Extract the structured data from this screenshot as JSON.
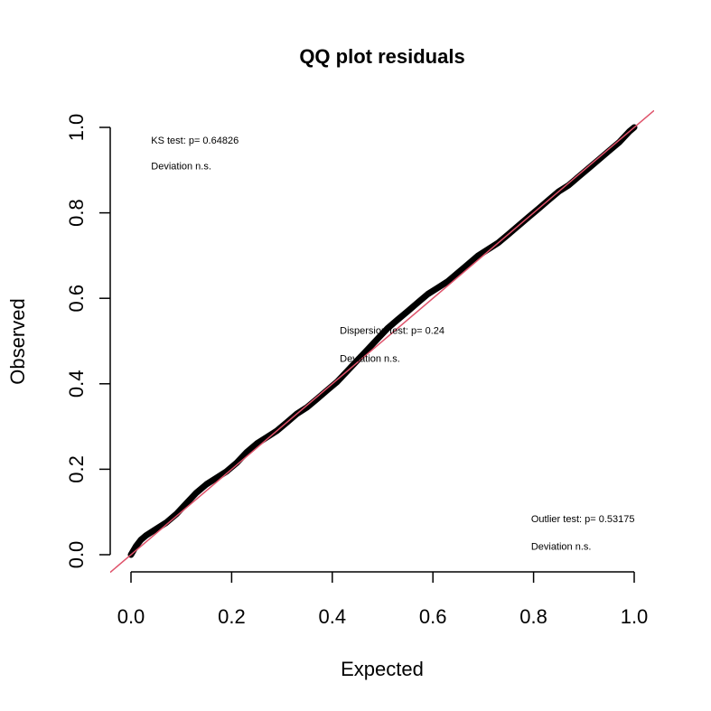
{
  "chart_data": {
    "type": "scatter",
    "title": "QQ plot residuals",
    "xlabel": "Expected",
    "ylabel": "Observed",
    "xlim": [
      0,
      1
    ],
    "ylim": [
      0,
      1
    ],
    "x_ticks": [
      "0.0",
      "0.2",
      "0.4",
      "0.6",
      "0.8",
      "1.0"
    ],
    "y_ticks": [
      "0.0",
      "0.2",
      "0.4",
      "0.6",
      "0.8",
      "1.0"
    ],
    "grid": false,
    "reference_line": {
      "slope": 1,
      "intercept": 0,
      "color": "#DF536B"
    },
    "point_color": "#000000",
    "series": [
      {
        "x": [
          0.0,
          0.01,
          0.02,
          0.03,
          0.05,
          0.07,
          0.09,
          0.11,
          0.13,
          0.15,
          0.17,
          0.19,
          0.21,
          0.23,
          0.25,
          0.27,
          0.29,
          0.31,
          0.33,
          0.35,
          0.37,
          0.39,
          0.41,
          0.43,
          0.45,
          0.47,
          0.49,
          0.51,
          0.53,
          0.55,
          0.57,
          0.59,
          0.61,
          0.63,
          0.65,
          0.67,
          0.69,
          0.71,
          0.73,
          0.75,
          0.77,
          0.79,
          0.81,
          0.83,
          0.85,
          0.87,
          0.89,
          0.91,
          0.93,
          0.95,
          0.97,
          0.99,
          1.0
        ],
        "y": [
          0.0,
          0.02,
          0.035,
          0.045,
          0.06,
          0.075,
          0.095,
          0.12,
          0.145,
          0.165,
          0.18,
          0.195,
          0.215,
          0.24,
          0.26,
          0.275,
          0.29,
          0.31,
          0.33,
          0.345,
          0.365,
          0.385,
          0.405,
          0.43,
          0.455,
          0.48,
          0.505,
          0.53,
          0.55,
          0.57,
          0.59,
          0.61,
          0.625,
          0.64,
          0.66,
          0.68,
          0.7,
          0.715,
          0.73,
          0.75,
          0.77,
          0.79,
          0.81,
          0.83,
          0.85,
          0.865,
          0.885,
          0.905,
          0.925,
          0.945,
          0.965,
          0.99,
          1.0
        ]
      }
    ],
    "annotations": [
      {
        "group": "ks",
        "lines": [
          "KS test: p= 0.64826",
          "Deviation  n.s."
        ],
        "x": 0.04,
        "y": [
          0.97,
          0.91
        ]
      },
      {
        "group": "dispersion",
        "lines": [
          "Dispersion test: p= 0.24",
          "Deviation  n.s."
        ],
        "x": 0.415,
        "y": [
          0.525,
          0.46
        ]
      },
      {
        "group": "outlier",
        "lines": [
          "Outlier test: p= 0.53175",
          "Deviation  n.s."
        ],
        "x": 0.795,
        "y": [
          0.085,
          0.02
        ]
      }
    ]
  }
}
